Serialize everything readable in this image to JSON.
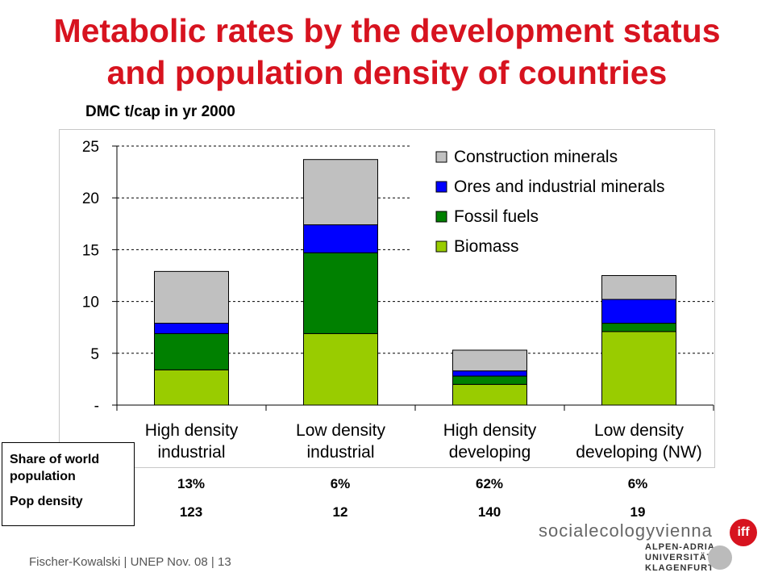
{
  "slide": {
    "title_line1": "Metabolic rates by the development status",
    "title_line2": "and population  density of countries",
    "subtitle": "DMC t/cap in yr 2000",
    "footer": "Fischer-Kowalski | UNEP Nov. 08 | 13"
  },
  "table": {
    "share_label_line1": "Share of world",
    "share_label_line2": "population",
    "density_label": "Pop density",
    "share_values": [
      "13%",
      "6%",
      "62%",
      "6%"
    ],
    "density_values": [
      "123",
      "12",
      "140",
      "19"
    ]
  },
  "logos": {
    "social_ecology": "socialecologyvienna",
    "iff": "iff",
    "uni_line1": "ALPEN-ADRIA",
    "uni_line2": "UNIVERSITÄT",
    "uni_line3": "KLAGENFURT"
  },
  "chart_data": {
    "type": "bar",
    "stacked": true,
    "title": "DMC t/cap in yr 2000",
    "categories": [
      [
        "High density",
        "industrial"
      ],
      [
        "Low density",
        "industrial"
      ],
      [
        "High density",
        "developing"
      ],
      [
        "Low density",
        "developing (NW)"
      ]
    ],
    "series": [
      {
        "name": "Biomass",
        "color": "#99cc00",
        "values": [
          3.4,
          6.9,
          2.0,
          7.1
        ]
      },
      {
        "name": "Fossil fuels",
        "color": "#008000",
        "values": [
          3.5,
          7.8,
          0.8,
          0.8
        ]
      },
      {
        "name": "Ores and industrial minerals",
        "color": "#0000ff",
        "values": [
          1.0,
          2.7,
          0.5,
          2.3
        ]
      },
      {
        "name": "Construction minerals",
        "color": "#c0c0c0",
        "values": [
          5.0,
          6.3,
          2.0,
          2.3
        ]
      }
    ],
    "legend_order": [
      "Construction minerals",
      "Ores and industrial minerals",
      "Fossil fuels",
      "Biomass"
    ],
    "ylim": [
      0,
      25
    ],
    "yticks": [
      0,
      5,
      10,
      15,
      20,
      25
    ],
    "ytick_labels": [
      "-",
      "5",
      "10",
      "15",
      "20",
      "25"
    ],
    "xlabel": "",
    "ylabel": "",
    "grid": true,
    "legend_position": "top-right"
  }
}
